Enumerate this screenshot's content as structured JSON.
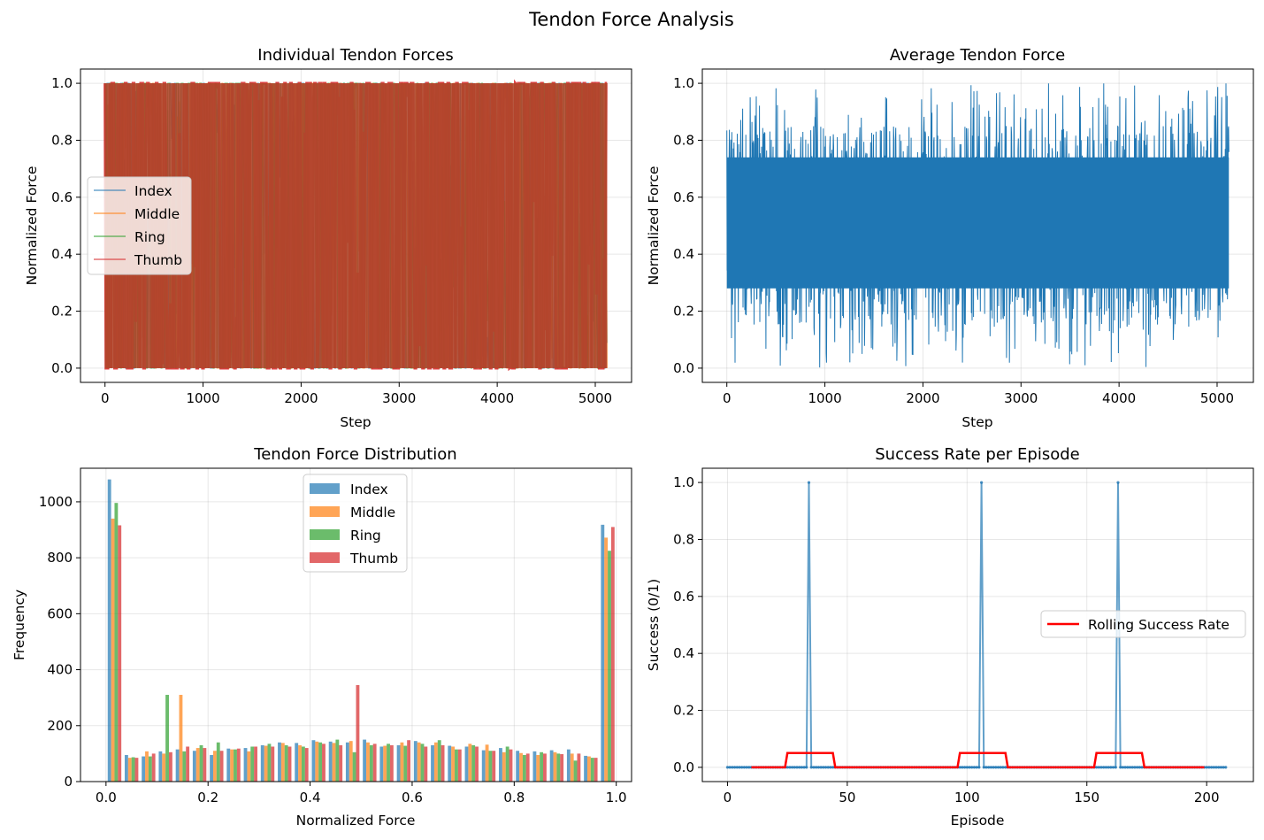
{
  "figure": {
    "suptitle": "Tendon Force Analysis",
    "colors": {
      "index": "#1f77b4",
      "middle": "#ff7f0e",
      "ring": "#2ca02c",
      "thumb": "#d62728",
      "rolling": "#ff0000",
      "grid": "#b0b0b0"
    }
  },
  "chart_data": [
    {
      "type": "line",
      "title": "Individual Tendon Forces",
      "xlabel": "Step",
      "ylabel": "Normalized Force",
      "xlim": [
        -250,
        5370
      ],
      "ylim": [
        -0.05,
        1.05
      ],
      "xticks": [
        0,
        1000,
        2000,
        3000,
        4000,
        5000
      ],
      "yticks": [
        0.0,
        0.2,
        0.4,
        0.6,
        0.8,
        1.0
      ],
      "x_range": [
        0,
        5120
      ],
      "value_range": [
        0.0,
        1.0
      ],
      "series": [
        {
          "name": "Index",
          "color": "#1f77b4"
        },
        {
          "name": "Middle",
          "color": "#ff7f0e"
        },
        {
          "name": "Ring",
          "color": "#2ca02c"
        },
        {
          "name": "Thumb",
          "color": "#d62728"
        }
      ],
      "legend": "center-left",
      "grid": true
    },
    {
      "type": "line",
      "title": "Average Tendon Force",
      "xlabel": "Step",
      "ylabel": "Normalized Force",
      "xlim": [
        -250,
        5370
      ],
      "ylim": [
        -0.05,
        1.05
      ],
      "xticks": [
        0,
        1000,
        2000,
        3000,
        4000,
        5000
      ],
      "yticks": [
        0.0,
        0.2,
        0.4,
        0.6,
        0.8,
        1.0
      ],
      "x_range": [
        0,
        5120
      ],
      "typical_band": [
        0.25,
        0.75
      ],
      "value_range": [
        0.0,
        1.0
      ],
      "series": [
        {
          "color": "#1f77b4"
        }
      ],
      "grid": true
    },
    {
      "type": "bar",
      "title": "Tendon Force Distribution",
      "xlabel": "Normalized Force",
      "ylabel": "Frequency",
      "xlim": [
        -0.05,
        1.03
      ],
      "ylim": [
        0,
        1120
      ],
      "xticks": [
        0.0,
        0.2,
        0.4,
        0.6,
        0.8,
        1.0
      ],
      "yticks": [
        0,
        200,
        400,
        600,
        800,
        1000
      ],
      "bins": 30,
      "bin_range": [
        0.0,
        1.0
      ],
      "series": [
        {
          "name": "Index",
          "color": "#1f77b4",
          "values": [
            1080,
            95,
            90,
            108,
            115,
            110,
            95,
            118,
            120,
            130,
            140,
            138,
            148,
            143,
            140,
            150,
            125,
            130,
            145,
            130,
            128,
            125,
            112,
            120,
            110,
            108,
            112,
            115,
            92,
            918
          ]
        },
        {
          "name": "Middle",
          "color": "#ff7f0e",
          "values": [
            940,
            85,
            108,
            100,
            310,
            120,
            110,
            115,
            108,
            128,
            138,
            130,
            143,
            138,
            145,
            140,
            128,
            140,
            140,
            140,
            125,
            135,
            132,
            105,
            102,
            95,
            105,
            100,
            90,
            872
          ]
        },
        {
          "name": "Ring",
          "color": "#2ca02c",
          "values": [
            996,
            87,
            90,
            310,
            108,
            130,
            140,
            115,
            125,
            135,
            130,
            125,
            140,
            150,
            105,
            130,
            135,
            128,
            135,
            148,
            115,
            130,
            110,
            125,
            95,
            105,
            100,
            75,
            85,
            825
          ]
        },
        {
          "name": "Thumb",
          "color": "#d62728",
          "values": [
            916,
            85,
            100,
            105,
            125,
            120,
            110,
            118,
            125,
            125,
            125,
            120,
            135,
            130,
            345,
            135,
            130,
            148,
            125,
            130,
            115,
            125,
            110,
            115,
            100,
            100,
            98,
            100,
            85,
            910
          ]
        }
      ],
      "legend": "upper-center",
      "grid": true
    },
    {
      "type": "line",
      "title": "Success Rate per Episode",
      "xlabel": "Episode",
      "ylabel": "Success (0/1)",
      "xlim": [
        -10.5,
        219.5
      ],
      "ylim": [
        -0.05,
        1.05
      ],
      "xticks": [
        0,
        50,
        100,
        150,
        200
      ],
      "yticks": [
        0.0,
        0.2,
        0.4,
        0.6,
        0.8,
        1.0
      ],
      "episodes": 209,
      "success_episodes": [
        34,
        106,
        163
      ],
      "rolling_window": 20,
      "series": [
        {
          "color": "#1f77b4"
        },
        {
          "name": "Rolling Success Rate",
          "color": "#ff0000"
        }
      ],
      "legend": "center-right",
      "grid": true
    }
  ]
}
